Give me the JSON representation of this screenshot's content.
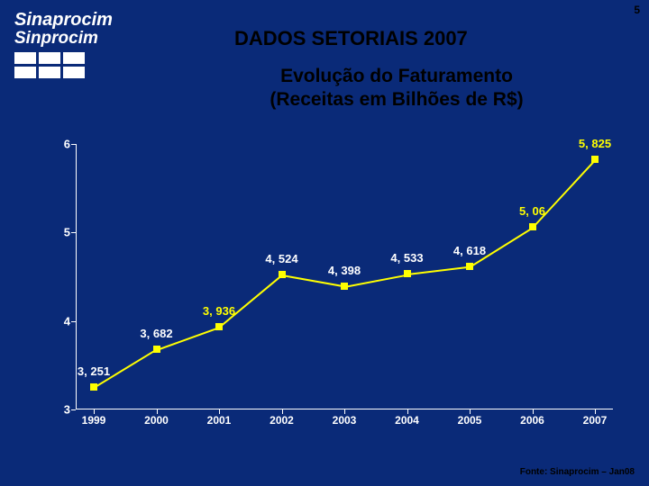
{
  "page_number": "5",
  "logo": {
    "line1": "Sinaprocim",
    "line2": "Sinprocim",
    "fg": "#ffffff"
  },
  "title": "DADOS SETORIAIS 2007",
  "subtitle_l1": "Evolução do Faturamento",
  "subtitle_l2": "(Receitas em Bilhões de R$)",
  "footer": "Fonte: Sinaprocim – Jan08",
  "colors": {
    "background": "#0a2a78",
    "title_fg": "#000000",
    "subtitle_fg": "#000000",
    "page_num_fg": "#000000",
    "footer_fg": "#000000",
    "axis": "#ffffff",
    "tick_label": "#ffffff",
    "line": "#ffff00",
    "marker": "#ffff00",
    "data_label": "#ffffff",
    "highlight_label": "#ffff00"
  },
  "chart": {
    "type": "line",
    "ylim": [
      3,
      6
    ],
    "yticks": [
      3,
      4,
      5,
      6
    ],
    "marker_style": "square",
    "marker_size": 8,
    "line_width": 2,
    "label_fontsize": 13,
    "axis_fontsize": 13,
    "xlabel_fontsize": 12,
    "series": [
      {
        "x": "1999",
        "y": 3.251,
        "label": "3, 251",
        "label_color": "#ffffff"
      },
      {
        "x": "2000",
        "y": 3.682,
        "label": "3, 682",
        "label_color": "#ffffff"
      },
      {
        "x": "2001",
        "y": 3.936,
        "label": "3, 936",
        "label_color": "#ffff00"
      },
      {
        "x": "2002",
        "y": 4.524,
        "label": "4, 524",
        "label_color": "#ffffff"
      },
      {
        "x": "2003",
        "y": 4.398,
        "label": "4, 398",
        "label_color": "#ffffff"
      },
      {
        "x": "2004",
        "y": 4.533,
        "label": "4, 533",
        "label_color": "#ffffff"
      },
      {
        "x": "2005",
        "y": 4.618,
        "label": "4, 618",
        "label_color": "#ffffff"
      },
      {
        "x": "2006",
        "y": 5.06,
        "label": "5, 06",
        "label_color": "#ffff00"
      },
      {
        "x": "2007",
        "y": 5.825,
        "label": "5, 825",
        "label_color": "#ffff00"
      }
    ]
  }
}
